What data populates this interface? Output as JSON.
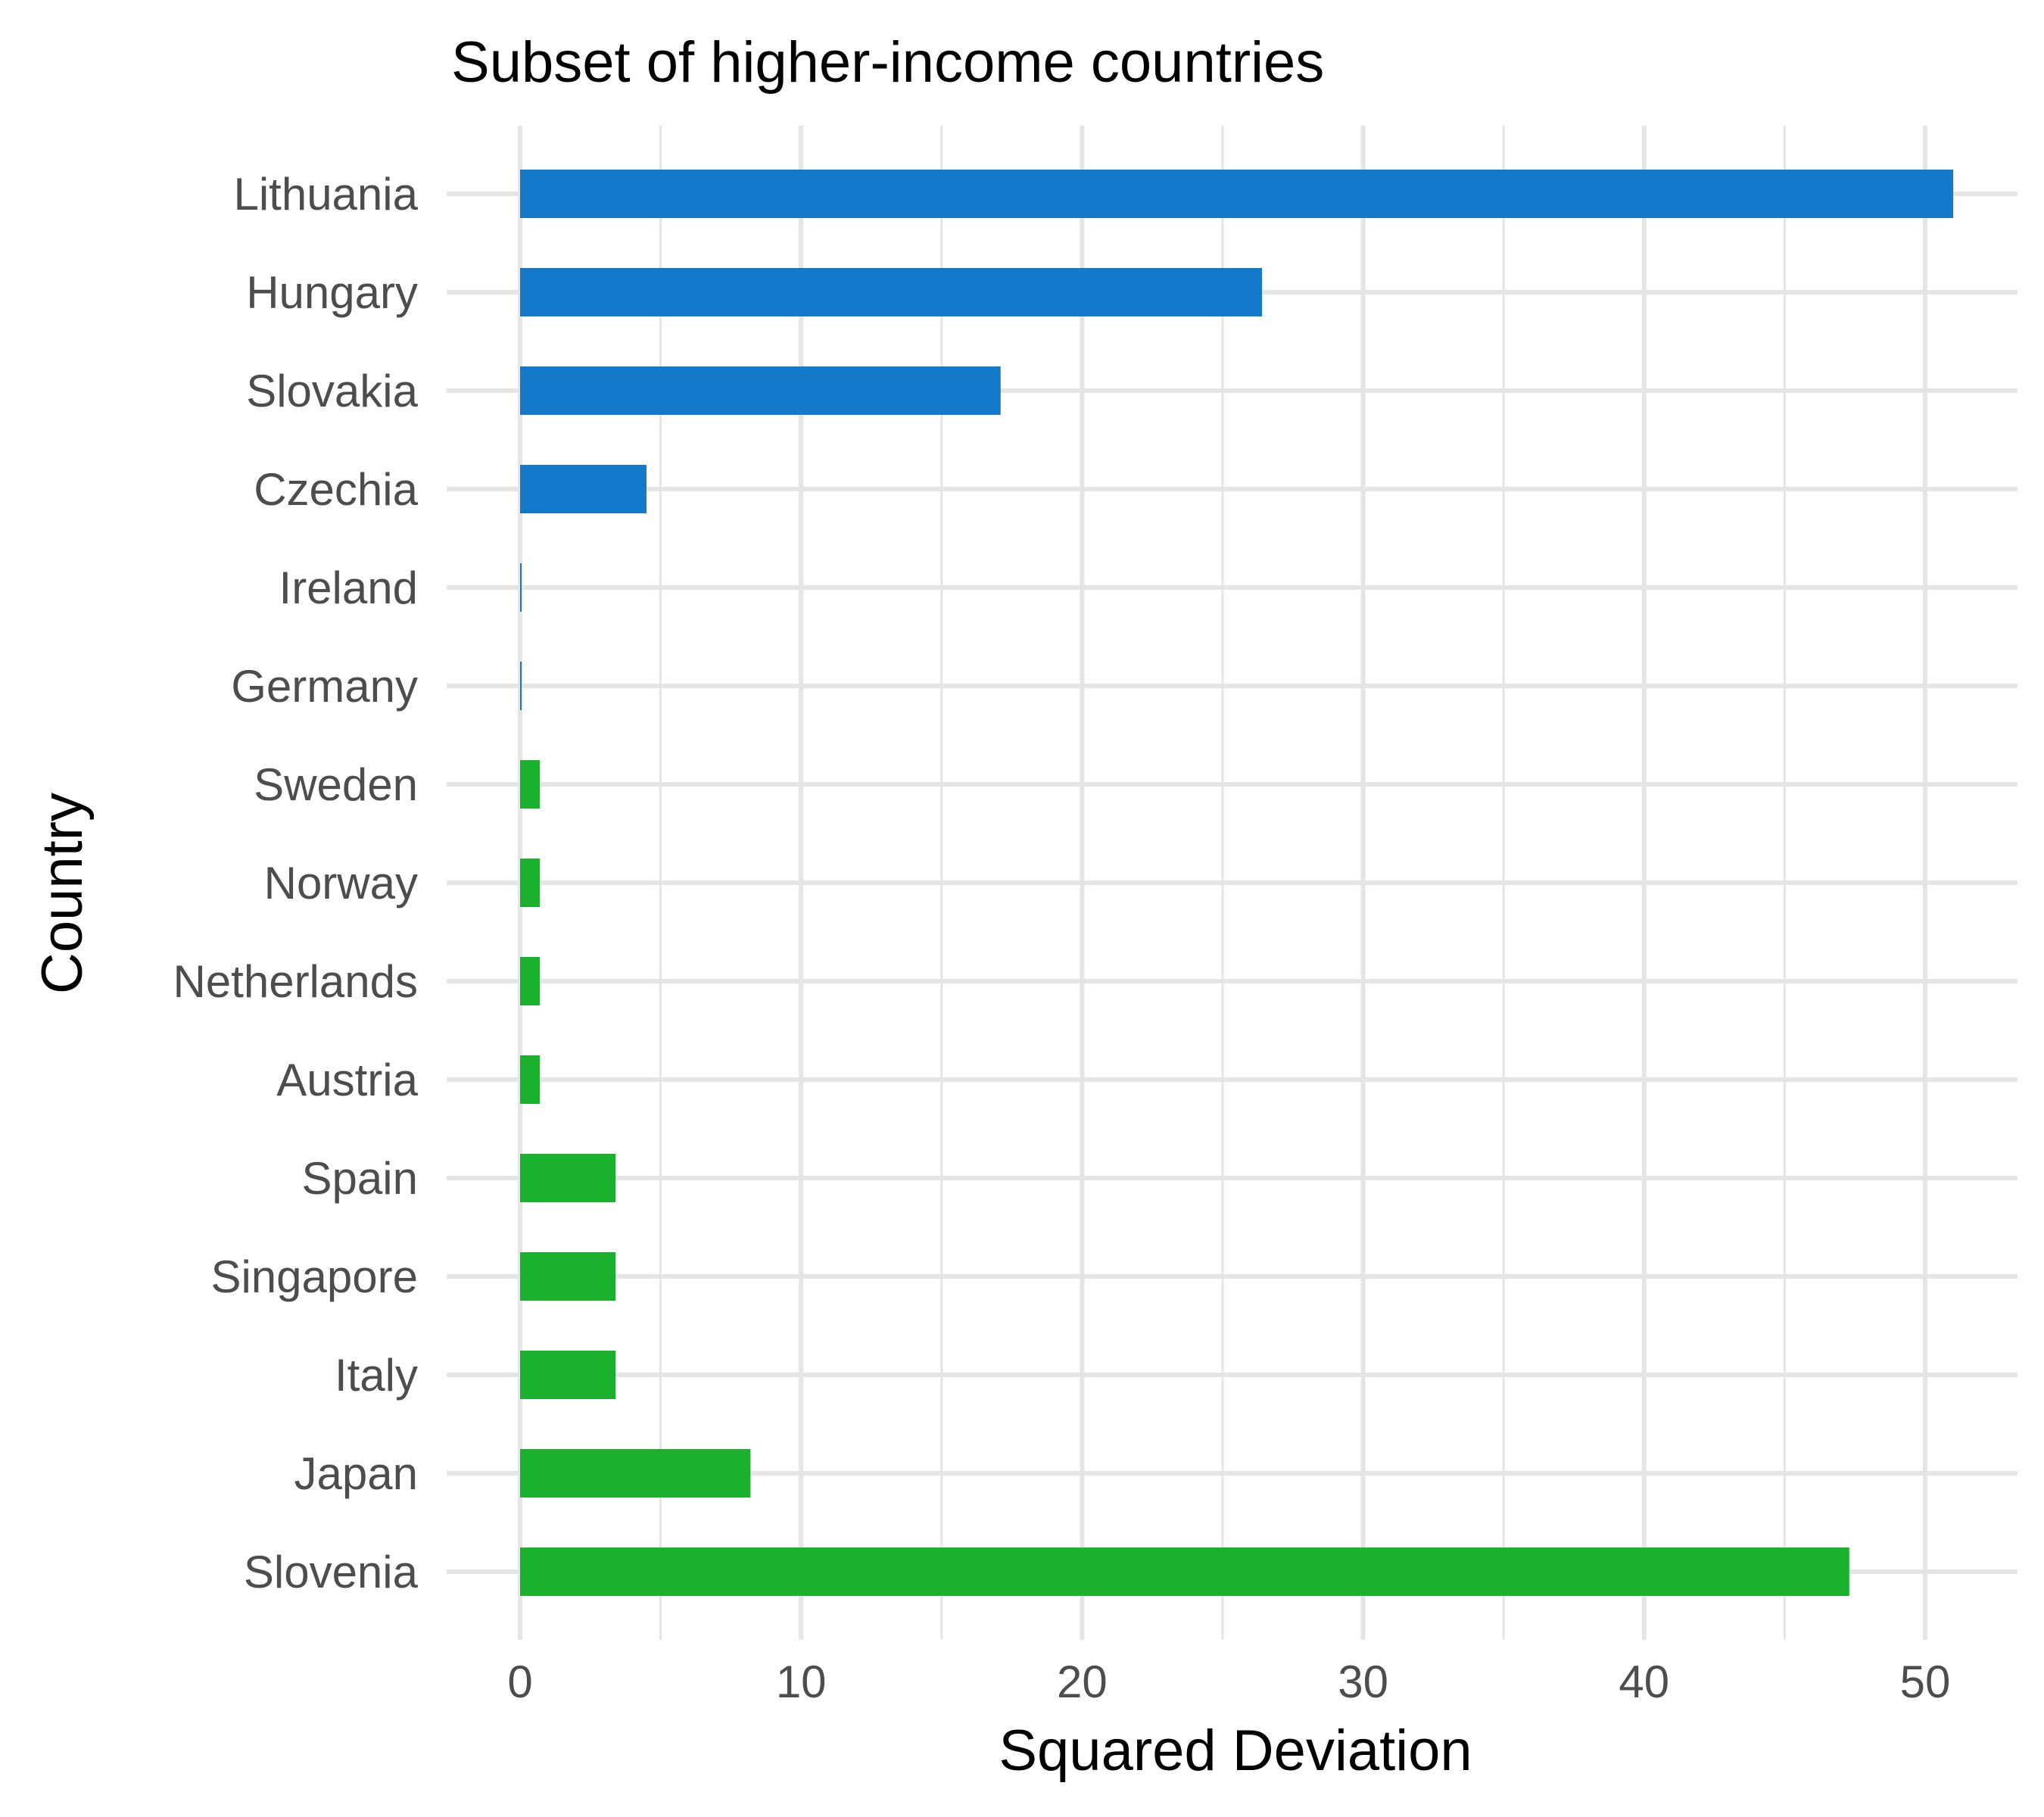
{
  "chart_data": {
    "type": "bar",
    "orientation": "horizontal",
    "title": "Subset of higher-income countries",
    "xlabel": "Squared Deviation",
    "ylabel": "Country",
    "xlim": [
      0,
      53
    ],
    "xticks": [
      0,
      10,
      20,
      30,
      40,
      50
    ],
    "grid": true,
    "legend": "none",
    "colors": {
      "positive": "#1479c9",
      "negative": "#1bb02e"
    },
    "categories": [
      "Lithuania",
      "Hungary",
      "Slovakia",
      "Czechia",
      "Ireland",
      "Germany",
      "Sweden",
      "Norway",
      "Netherlands",
      "Austria",
      "Spain",
      "Singapore",
      "Italy",
      "Japan",
      "Slovenia"
    ],
    "values": [
      51,
      26.4,
      17.1,
      4.5,
      0.05,
      0.05,
      0.7,
      0.7,
      0.7,
      0.7,
      3.4,
      3.4,
      3.4,
      8.2,
      47.3
    ],
    "group": [
      "positive",
      "positive",
      "positive",
      "positive",
      "positive",
      "positive",
      "negative",
      "negative",
      "negative",
      "negative",
      "negative",
      "negative",
      "negative",
      "negative",
      "negative"
    ]
  }
}
